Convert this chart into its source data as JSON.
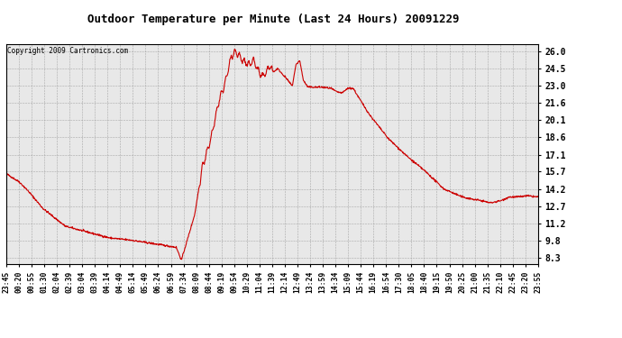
{
  "title": "Outdoor Temperature per Minute (Last 24 Hours) 20091229",
  "copyright": "Copyright 2009 Cartronics.com",
  "line_color": "#cc0000",
  "bg_color": "#ffffff",
  "plot_bg_color": "#e8e8e8",
  "grid_color": "#999999",
  "yticks": [
    8.3,
    9.8,
    11.2,
    12.7,
    14.2,
    15.7,
    17.1,
    18.6,
    20.1,
    21.6,
    23.0,
    24.5,
    26.0
  ],
  "ylim": [
    7.8,
    26.6
  ],
  "xtick_labels": [
    "23:45",
    "00:20",
    "00:55",
    "01:30",
    "02:04",
    "02:39",
    "03:04",
    "03:39",
    "04:14",
    "04:49",
    "05:14",
    "05:49",
    "06:24",
    "06:59",
    "07:34",
    "08:09",
    "08:44",
    "09:19",
    "09:54",
    "10:29",
    "11:04",
    "11:39",
    "12:14",
    "12:49",
    "13:24",
    "13:59",
    "14:34",
    "15:09",
    "15:44",
    "16:19",
    "16:54",
    "17:30",
    "18:05",
    "18:40",
    "19:15",
    "19:50",
    "20:25",
    "21:00",
    "21:35",
    "22:10",
    "22:45",
    "23:20",
    "23:55"
  ]
}
